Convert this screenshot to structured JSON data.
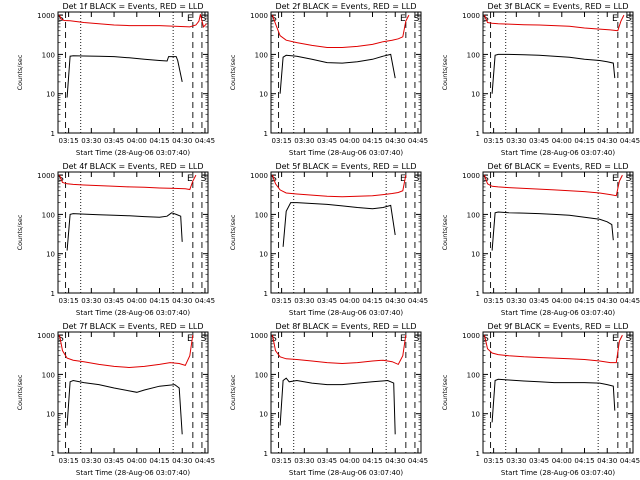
{
  "colors": {
    "events": "#000000",
    "lld": "#e00000",
    "axes": "#000000",
    "background": "#ffffff"
  },
  "shared": {
    "ylabel": "Counts/sec",
    "xlabel": "Start Time (28-Aug-06 03:07:40)",
    "x_ticks": [
      "03:15",
      "03:30",
      "03:45",
      "04:00",
      "04:15",
      "04:30",
      "04:45"
    ],
    "x_tick_minutes": [
      195,
      210,
      225,
      240,
      255,
      270,
      285
    ],
    "y_ticks": [
      "1",
      "10",
      "100",
      "1000"
    ],
    "y_tick_values": [
      1,
      10,
      100,
      1000
    ],
    "xlim_minutes": [
      188,
      287
    ],
    "ylim": [
      1,
      1200
    ],
    "yscale": "log",
    "markers": {
      "S_label": "S",
      "E_label": "E"
    }
  },
  "chart_data": [
    {
      "type": "line",
      "title": "Det 1f BLACK = Events, RED = LLD",
      "dashed_lines_minutes": [
        193,
        277,
        283
      ],
      "dotted_lines_minutes": [
        203,
        264
      ],
      "S_markers_minutes": [
        190,
        284
      ],
      "E_markers_minutes": [
        275
      ],
      "series": [
        {
          "name": "Events",
          "x": [
            194,
            196,
            198,
            205,
            215,
            225,
            235,
            245,
            255,
            260,
            261,
            266,
            267,
            270
          ],
          "y": [
            8,
            90,
            92,
            91,
            90,
            88,
            82,
            75,
            70,
            68,
            88,
            88,
            70,
            20
          ]
        },
        {
          "name": "LLD",
          "x": [
            189,
            190,
            192,
            196,
            205,
            215,
            225,
            235,
            245,
            255,
            265,
            275,
            279,
            281,
            282,
            284,
            286
          ],
          "y": [
            1000,
            800,
            730,
            720,
            650,
            600,
            560,
            540,
            540,
            540,
            520,
            500,
            560,
            700,
            1050,
            500,
            600
          ]
        }
      ]
    },
    {
      "type": "line",
      "title": "Det 2f BLACK = Events, RED = LLD",
      "dashed_lines_minutes": [
        193,
        277,
        283
      ],
      "dotted_lines_minutes": [
        203,
        264
      ],
      "S_markers_minutes": [
        190,
        284
      ],
      "E_markers_minutes": [
        275
      ],
      "series": [
        {
          "name": "Events",
          "x": [
            194,
            196,
            198,
            205,
            215,
            225,
            235,
            245,
            255,
            262,
            267,
            270
          ],
          "y": [
            10,
            85,
            95,
            90,
            75,
            62,
            60,
            65,
            75,
            90,
            100,
            25
          ]
        },
        {
          "name": "LLD",
          "x": [
            189,
            191,
            194,
            198,
            205,
            215,
            225,
            235,
            245,
            255,
            262,
            268,
            272,
            275,
            277,
            279
          ],
          "y": [
            1000,
            600,
            300,
            230,
            200,
            170,
            150,
            150,
            160,
            180,
            210,
            230,
            250,
            280,
            700,
            1000
          ]
        }
      ]
    },
    {
      "type": "line",
      "title": "Det 3f BLACK = Events, RED = LLD",
      "dashed_lines_minutes": [
        193,
        277,
        283
      ],
      "dotted_lines_minutes": [
        203,
        264
      ],
      "S_markers_minutes": [
        190,
        284
      ],
      "E_markers_minutes": [
        275
      ],
      "series": [
        {
          "name": "Events",
          "x": [
            194,
            196,
            198,
            205,
            215,
            225,
            235,
            245,
            255,
            265,
            270,
            274,
            275
          ],
          "y": [
            10,
            95,
            100,
            100,
            98,
            95,
            90,
            85,
            75,
            70,
            65,
            60,
            25
          ]
        },
        {
          "name": "LLD",
          "x": [
            189,
            191,
            194,
            198,
            205,
            215,
            225,
            235,
            245,
            255,
            265,
            272,
            277,
            279,
            281
          ],
          "y": [
            1000,
            650,
            620,
            600,
            590,
            570,
            560,
            540,
            520,
            470,
            440,
            420,
            400,
            700,
            1000
          ]
        }
      ]
    },
    {
      "type": "line",
      "title": "Det 4f BLACK = Events, RED = LLD",
      "dashed_lines_minutes": [
        193,
        277,
        283
      ],
      "dotted_lines_minutes": [
        203,
        264
      ],
      "S_markers_minutes": [
        190,
        284
      ],
      "E_markers_minutes": [
        275
      ],
      "series": [
        {
          "name": "Events",
          "x": [
            194,
            196,
            198,
            205,
            215,
            225,
            235,
            245,
            255,
            260,
            263,
            266,
            269,
            270
          ],
          "y": [
            12,
            100,
            105,
            102,
            98,
            95,
            92,
            88,
            85,
            90,
            110,
            100,
            90,
            20
          ]
        },
        {
          "name": "LLD",
          "x": [
            189,
            191,
            194,
            198,
            205,
            215,
            225,
            235,
            245,
            255,
            265,
            272,
            275,
            277,
            279
          ],
          "y": [
            1000,
            650,
            600,
            580,
            560,
            540,
            520,
            500,
            490,
            470,
            460,
            450,
            430,
            700,
            1000
          ]
        }
      ]
    },
    {
      "type": "line",
      "title": "Det 5f BLACK = Events, RED = LLD",
      "dashed_lines_minutes": [
        193,
        277,
        283
      ],
      "dotted_lines_minutes": [
        203,
        264
      ],
      "S_markers_minutes": [
        190,
        284
      ],
      "E_markers_minutes": [
        275
      ],
      "series": [
        {
          "name": "Events",
          "x": [
            196,
            198,
            201,
            205,
            215,
            225,
            235,
            245,
            255,
            262,
            267,
            270
          ],
          "y": [
            15,
            120,
            200,
            200,
            190,
            180,
            165,
            150,
            140,
            150,
            170,
            30
          ]
        },
        {
          "name": "LLD",
          "x": [
            189,
            191,
            194,
            198,
            205,
            215,
            225,
            235,
            245,
            255,
            262,
            268,
            272,
            275,
            277
          ],
          "y": [
            1000,
            600,
            420,
            350,
            330,
            310,
            290,
            280,
            290,
            300,
            320,
            340,
            360,
            400,
            1000
          ]
        }
      ]
    },
    {
      "type": "line",
      "title": "Det 6f BLACK = Events, RED = LLD",
      "dashed_lines_minutes": [
        193,
        277,
        283
      ],
      "dotted_lines_minutes": [
        203,
        264
      ],
      "S_markers_minutes": [
        190,
        284
      ],
      "E_markers_minutes": [
        275
      ],
      "series": [
        {
          "name": "Events",
          "x": [
            194,
            196,
            198,
            205,
            215,
            225,
            235,
            245,
            255,
            265,
            270,
            273,
            274
          ],
          "y": [
            12,
            110,
            115,
            110,
            108,
            105,
            100,
            95,
            85,
            75,
            65,
            55,
            22
          ]
        },
        {
          "name": "LLD",
          "x": [
            189,
            191,
            194,
            198,
            205,
            215,
            225,
            235,
            245,
            255,
            265,
            272,
            276,
            278,
            280
          ],
          "y": [
            1000,
            600,
            520,
            500,
            480,
            460,
            440,
            420,
            400,
            380,
            350,
            320,
            300,
            700,
            1000
          ]
        }
      ]
    },
    {
      "type": "line",
      "title": "Det 7f BLACK = Events, RED = LLD",
      "dashed_lines_minutes": [
        193,
        277,
        283
      ],
      "dotted_lines_minutes": [
        203,
        264
      ],
      "S_markers_minutes": [
        190,
        284
      ],
      "E_markers_minutes": [
        275
      ],
      "series": [
        {
          "name": "Events",
          "x": [
            194,
            196,
            198,
            205,
            215,
            225,
            235,
            240,
            245,
            255,
            265,
            268,
            270
          ],
          "y": [
            5,
            65,
            70,
            62,
            55,
            45,
            38,
            35,
            40,
            50,
            55,
            45,
            3
          ]
        },
        {
          "name": "LLD",
          "x": [
            189,
            191,
            194,
            198,
            205,
            215,
            225,
            235,
            245,
            255,
            262,
            268,
            272,
            275,
            277
          ],
          "y": [
            1000,
            400,
            260,
            230,
            210,
            180,
            160,
            150,
            160,
            180,
            200,
            190,
            170,
            300,
            1000
          ]
        }
      ]
    },
    {
      "type": "line",
      "title": "Det 8f BLACK = Events, RED = LLD",
      "dashed_lines_minutes": [
        193,
        277,
        283
      ],
      "dotted_lines_minutes": [
        203,
        264
      ],
      "S_markers_minutes": [
        190,
        284
      ],
      "E_markers_minutes": [
        275
      ],
      "series": [
        {
          "name": "Events",
          "x": [
            194,
            196,
            198,
            200,
            205,
            215,
            225,
            235,
            245,
            255,
            265,
            269,
            270
          ],
          "y": [
            5,
            70,
            80,
            65,
            70,
            60,
            55,
            55,
            60,
            65,
            70,
            60,
            3
          ]
        },
        {
          "name": "LLD",
          "x": [
            189,
            191,
            194,
            198,
            205,
            215,
            225,
            235,
            245,
            255,
            262,
            268,
            272,
            275,
            277
          ],
          "y": [
            1000,
            400,
            280,
            250,
            240,
            220,
            200,
            190,
            200,
            220,
            230,
            210,
            180,
            300,
            1000
          ]
        }
      ]
    },
    {
      "type": "line",
      "title": "Det 9f BLACK = Events, RED = LLD",
      "dashed_lines_minutes": [
        193,
        277,
        283
      ],
      "dotted_lines_minutes": [
        203,
        264
      ],
      "S_markers_minutes": [
        190,
        284
      ],
      "E_markers_minutes": [
        275
      ],
      "series": [
        {
          "name": "Events",
          "x": [
            194,
            196,
            198,
            205,
            215,
            225,
            235,
            245,
            255,
            265,
            270,
            274,
            275
          ],
          "y": [
            6,
            70,
            75,
            72,
            68,
            65,
            62,
            62,
            62,
            60,
            55,
            50,
            12
          ]
        },
        {
          "name": "LLD",
          "x": [
            189,
            191,
            194,
            198,
            205,
            215,
            225,
            235,
            245,
            255,
            265,
            272,
            276,
            278,
            280
          ],
          "y": [
            1000,
            450,
            350,
            320,
            300,
            280,
            270,
            260,
            250,
            240,
            220,
            200,
            200,
            700,
            1000
          ]
        }
      ]
    }
  ]
}
